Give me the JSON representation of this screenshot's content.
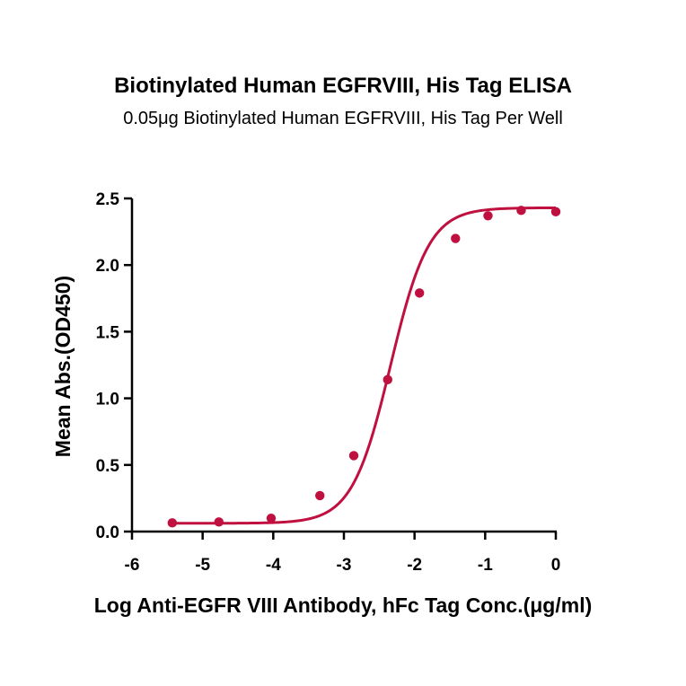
{
  "chart_data": {
    "type": "scatter",
    "title": "Biotinylated Human EGFRVIII, His Tag ELISA",
    "subtitle": "0.05μg Biotinylated Human EGFRVIII, His Tag Per Well",
    "xlabel": "Log Anti-EGFR VIII Antibody, hFc Tag Conc.(μg/ml)",
    "ylabel": "Mean Abs.(OD450)",
    "xlim": [
      -6,
      0
    ],
    "ylim": [
      0,
      2.5
    ],
    "xticks": [
      "-6",
      "-5",
      "-4",
      "-3",
      "-2",
      "-1",
      "0"
    ],
    "yticks": [
      "0.0",
      "0.5",
      "1.0",
      "1.5",
      "2.0",
      "2.5"
    ],
    "series": [
      {
        "color": "#c0103f",
        "x": [
          -5.43,
          -4.77,
          -4.03,
          -3.34,
          -2.86,
          -2.38,
          -1.93,
          -1.42,
          -0.96,
          -0.49,
          0.0
        ],
        "y": [
          0.065,
          0.072,
          0.1,
          0.27,
          0.57,
          1.14,
          1.79,
          2.2,
          2.37,
          2.41,
          2.4
        ],
        "fit": {
          "model": "4PL",
          "bottom": 0.062,
          "top": 2.43,
          "logEC50": -2.34,
          "hill": 1.6
        }
      }
    ],
    "grid": false,
    "legend": "none"
  }
}
